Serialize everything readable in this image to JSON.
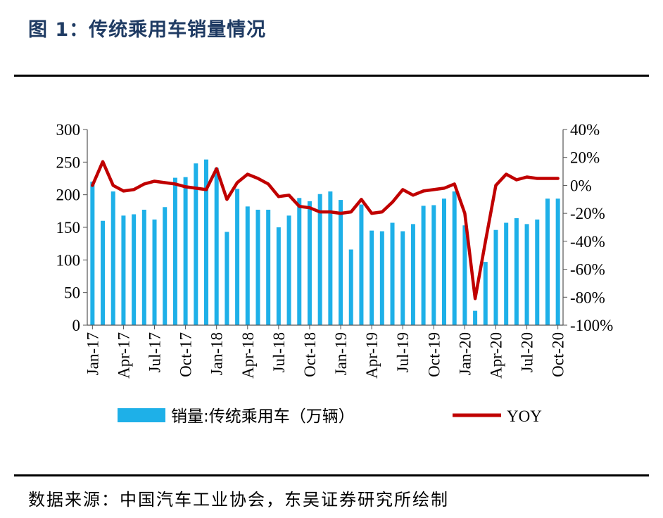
{
  "title": "图 1：传统乘用车销量情况",
  "source": "数据来源：中国汽车工业协会，东吴证券研究所绘制",
  "colors": {
    "bar": "#1eb0e8",
    "line": "#c00000",
    "title": "#1f3b63"
  },
  "chart_data": {
    "type": "bar+line",
    "categories": [
      "Jan-17",
      "Feb-17",
      "Mar-17",
      "Apr-17",
      "May-17",
      "Jun-17",
      "Jul-17",
      "Aug-17",
      "Sep-17",
      "Oct-17",
      "Nov-17",
      "Dec-17",
      "Jan-18",
      "Feb-18",
      "Mar-18",
      "Apr-18",
      "May-18",
      "Jun-18",
      "Jul-18",
      "Aug-18",
      "Sep-18",
      "Oct-18",
      "Nov-18",
      "Dec-18",
      "Jan-19",
      "Feb-19",
      "Mar-19",
      "Apr-19",
      "May-19",
      "Jun-19",
      "Jul-19",
      "Aug-19",
      "Sep-19",
      "Oct-19",
      "Nov-19",
      "Dec-19",
      "Jan-20",
      "Feb-20",
      "Mar-20",
      "Apr-20",
      "May-20",
      "Jun-20",
      "Jul-20",
      "Aug-20",
      "Sep-20",
      "Oct-20"
    ],
    "xtick_labels": [
      "Jan-17",
      "Apr-17",
      "Jul-17",
      "Oct-17",
      "Jan-18",
      "Apr-18",
      "Jul-18",
      "Oct-18",
      "Jan-19",
      "Apr-19",
      "Jul-19",
      "Oct-19",
      "Jan-20",
      "Apr-20",
      "Jul-20",
      "Oct-20"
    ],
    "series": [
      {
        "name": "销量:传统乘用车（万辆）",
        "type": "bar",
        "axis": "left",
        "values": [
          220,
          160,
          205,
          168,
          170,
          177,
          162,
          181,
          226,
          227,
          248,
          254,
          241,
          143,
          209,
          182,
          177,
          177,
          150,
          168,
          195,
          190,
          201,
          205,
          192,
          116,
          185,
          145,
          144,
          157,
          144,
          155,
          183,
          184,
          194,
          205,
          153,
          22,
          97,
          146,
          157,
          164,
          155,
          162,
          194,
          194
        ]
      },
      {
        "name": "YOY",
        "type": "line",
        "axis": "right",
        "values": [
          0,
          17,
          0,
          -4,
          -3,
          1,
          3,
          2,
          1,
          -1,
          -2,
          -3,
          12,
          -10,
          2,
          8,
          5,
          1,
          -8,
          -7,
          -15,
          -16,
          -19,
          -19,
          -20,
          -19,
          -10,
          -20,
          -19,
          -12,
          -3,
          -7,
          -4,
          -3,
          -2,
          1,
          -20,
          -81,
          -40,
          0,
          8,
          4,
          6,
          5,
          5,
          5
        ]
      }
    ],
    "yaxis_left": {
      "min": 0,
      "max": 300,
      "ticks": [
        "0",
        "50",
        "100",
        "150",
        "200",
        "250",
        "300"
      ]
    },
    "yaxis_right": {
      "min": -100,
      "max": 40,
      "ticks": [
        "-100%",
        "-80%",
        "-60%",
        "-40%",
        "-20%",
        "0%",
        "20%",
        "40%"
      ]
    },
    "legend": {
      "position": "bottom",
      "bar_label": "销量:传统乘用车（万辆）",
      "line_label": "YOY"
    }
  }
}
